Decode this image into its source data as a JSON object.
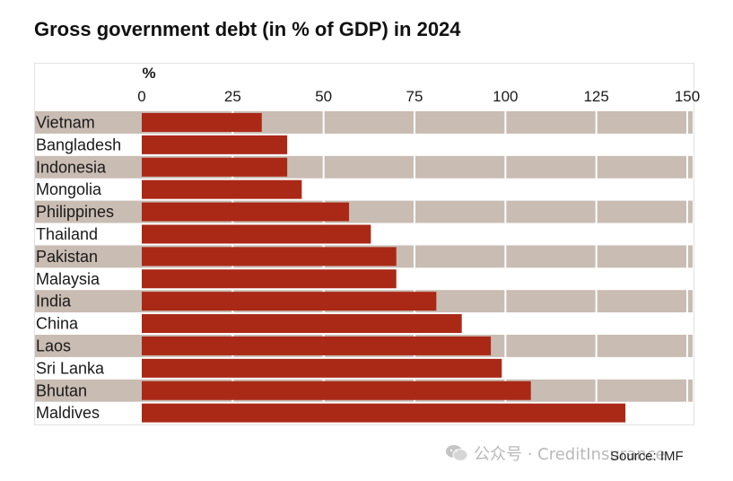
{
  "title": "Gross government debt (in % of GDP) in 2024",
  "watermark": "公众号 · CreditInsurance",
  "source": "Source: IMF",
  "chart_data": {
    "type": "bar",
    "orientation": "horizontal",
    "title": "Gross government debt (in % of GDP) in 2024",
    "xlabel": "%",
    "ylabel": "",
    "xlim": [
      0,
      150
    ],
    "xticks": [
      0,
      25,
      50,
      75,
      100,
      125,
      150
    ],
    "xtick_labels": [
      "0",
      "25",
      "50",
      "75",
      "100",
      "125",
      "150"
    ],
    "grid": true,
    "categories": [
      "Vietnam",
      "Bangladesh",
      "Indonesia",
      "Mongolia",
      "Philippines",
      "Thailand",
      "Pakistan",
      "Malaysia",
      "India",
      "China",
      "Laos",
      "Sri Lanka",
      "Bhutan",
      "Maldives"
    ],
    "values": [
      33,
      40,
      40,
      44,
      57,
      63,
      70,
      70,
      81,
      88,
      96,
      99,
      107,
      133
    ],
    "colors": {
      "bar": "#aa2916",
      "band": "#c9bcb3",
      "grid": "#ffffff",
      "text": "#1a1a1a"
    }
  }
}
